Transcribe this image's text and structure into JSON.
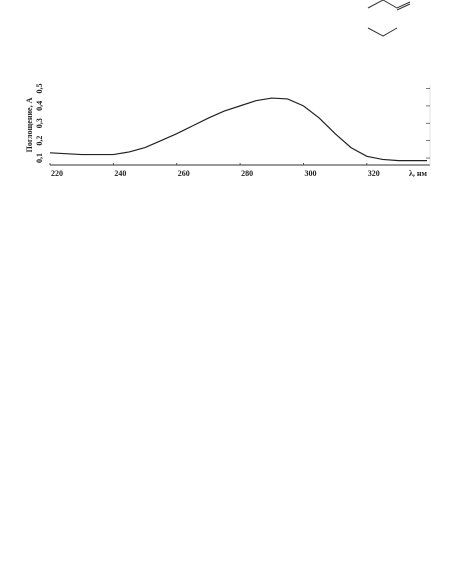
{
  "chart_data": {
    "type": "line",
    "ylabel": "Поглощение, A",
    "xlabel": "λ, нм",
    "x": [
      220,
      225,
      230,
      235,
      240,
      245,
      250,
      255,
      260,
      265,
      270,
      275,
      280,
      285,
      290,
      295,
      300,
      305,
      310,
      315,
      320,
      325,
      330,
      335,
      339
    ],
    "series": [
      {
        "color": "#222222",
        "values": [
          0.13,
          0.125,
          0.12,
          0.12,
          0.12,
          0.135,
          0.16,
          0.2,
          0.24,
          0.285,
          0.33,
          0.37,
          0.4,
          0.43,
          0.445,
          0.44,
          0.4,
          0.33,
          0.24,
          0.16,
          0.11,
          0.092,
          0.085,
          0.085,
          0.085
        ]
      }
    ],
    "xlim": [
      220,
      339
    ],
    "xticks": [
      220,
      240,
      260,
      280,
      300,
      320
    ],
    "ylim": [
      0.06,
      0.52
    ],
    "yticks": [
      {
        "value": 0.1,
        "label": "0,1"
      },
      {
        "value": 0.2,
        "label": "0,2"
      },
      {
        "value": 0.3,
        "label": "0,3"
      },
      {
        "value": 0.4,
        "label": "0,4"
      },
      {
        "value": 0.5,
        "label": "0,5"
      }
    ]
  }
}
